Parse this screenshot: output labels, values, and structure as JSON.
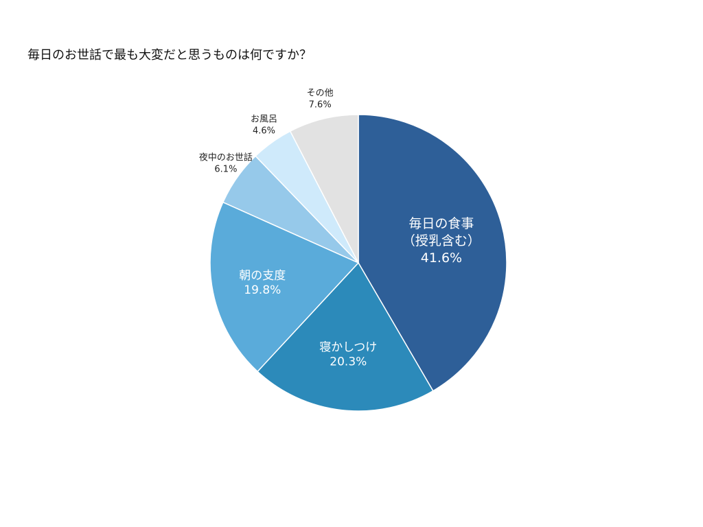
{
  "chart_data": {
    "type": "pie",
    "title": "毎日のお世話で最も大変だと思うものは何ですか？",
    "slices": [
      {
        "label": [
          "毎日の食事",
          "（授乳含む）"
        ],
        "value": 41.6,
        "value_label": "41.6%",
        "color": "#2E5F98",
        "label_inside": true
      },
      {
        "label": [
          "寝かしつけ"
        ],
        "value": 20.3,
        "value_label": "20.3%",
        "color": "#2C8ABA",
        "label_inside": true
      },
      {
        "label": [
          "朝の支度"
        ],
        "value": 19.8,
        "value_label": "19.8%",
        "color": "#5AABDA",
        "label_inside": true
      },
      {
        "label": [
          "夜中のお世話"
        ],
        "value": 6.1,
        "value_label": "6.1%",
        "color": "#96C9EA",
        "label_inside": false
      },
      {
        "label": [
          "お風呂"
        ],
        "value": 4.6,
        "value_label": "4.6%",
        "color": "#CFEAFB",
        "label_inside": false
      },
      {
        "label": [
          "その他"
        ],
        "value": 7.6,
        "value_label": "7.6%",
        "color": "#E2E2E2",
        "label_inside": false
      }
    ],
    "start": "12 o'clock",
    "direction": "clockwise",
    "legend": "none"
  }
}
